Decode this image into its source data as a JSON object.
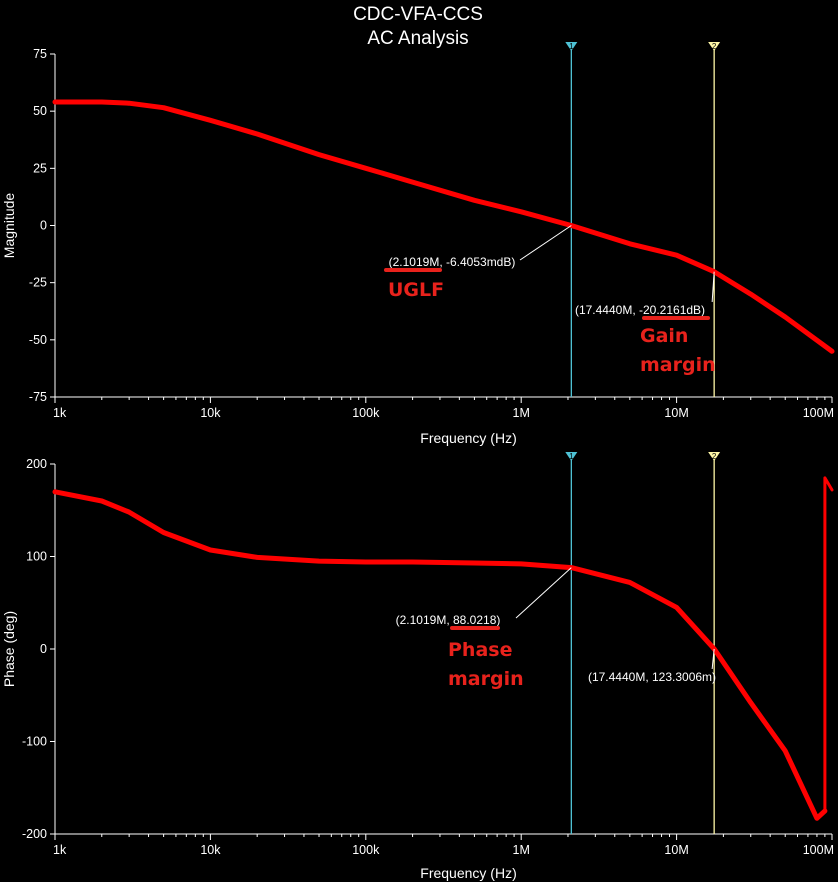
{
  "title_line1": "CDC-VFA-CCS",
  "title_line2": "AC Analysis",
  "colors": {
    "trace": "#ff0000",
    "cursor1": "#4fc3d6",
    "cursor2": "#fff8a8",
    "annotation": "#e8221c",
    "axes": "#ffffff"
  },
  "chart_data": [
    {
      "type": "line",
      "name": "magnitude",
      "xscale": "log",
      "xlim": [
        1000,
        100000000
      ],
      "ylim": [
        -75,
        75
      ],
      "xlabel": "Frequency (Hz)",
      "ylabel": "Magnitude",
      "x_ticks": [
        "1k",
        "10k",
        "100k",
        "1M",
        "10M",
        "100M"
      ],
      "y_ticks": [
        "75",
        "50",
        "25",
        "0",
        "-25",
        "-50",
        "-75"
      ],
      "series": [
        {
          "x": [
            1000,
            2000,
            3000,
            5000,
            10000,
            20000,
            50000,
            100000,
            200000,
            500000,
            1000000,
            2101900,
            5000000,
            10000000,
            17444000,
            30000000,
            50000000,
            100000000
          ],
          "y": [
            54,
            54,
            53.5,
            51.5,
            46,
            40,
            31,
            25,
            19,
            11,
            6,
            0,
            -8,
            -13,
            -20.2,
            -30,
            -40,
            -55
          ]
        }
      ],
      "cursors": [
        {
          "marker": "1",
          "x": 2101900,
          "label": "(2.1019M, -6.4053mdB)",
          "note": "UGLF"
        },
        {
          "marker": "2",
          "x": 17444000,
          "label": "(17.4440M, -20.2161dB)",
          "note_lines": [
            "Gain",
            "margin"
          ]
        }
      ]
    },
    {
      "type": "line",
      "name": "phase",
      "xscale": "log",
      "xlim": [
        1000,
        100000000
      ],
      "ylim": [
        -200,
        200
      ],
      "xlabel": "Frequency (Hz)",
      "ylabel": "Phase (deg)",
      "x_ticks": [
        "1k",
        "10k",
        "100k",
        "1M",
        "10M",
        "100M"
      ],
      "y_ticks": [
        "200",
        "100",
        "0",
        "-100",
        "-200"
      ],
      "series": [
        {
          "x": [
            1000,
            2000,
            3000,
            5000,
            10000,
            20000,
            50000,
            100000,
            200000,
            500000,
            1000000,
            2101900,
            5000000,
            10000000,
            17444000,
            30000000,
            50000000,
            80000000,
            90000000
          ],
          "y": [
            170,
            160,
            148,
            126,
            107,
            99,
            95,
            94,
            94,
            93,
            92,
            88,
            72,
            45,
            0.12,
            -58,
            -110,
            -183,
            -175
          ]
        },
        {
          "x": [
            90000000,
            90000000,
            100000000
          ],
          "y": [
            -175,
            185,
            172
          ]
        }
      ],
      "cursors": [
        {
          "marker": "1",
          "x": 2101900,
          "label": "(2.1019M, 88.0218)",
          "note_lines": [
            "Phase",
            "margin"
          ]
        },
        {
          "marker": "2",
          "x": 17444000,
          "label": "(17.4440M, 123.3006m)"
        }
      ]
    }
  ]
}
